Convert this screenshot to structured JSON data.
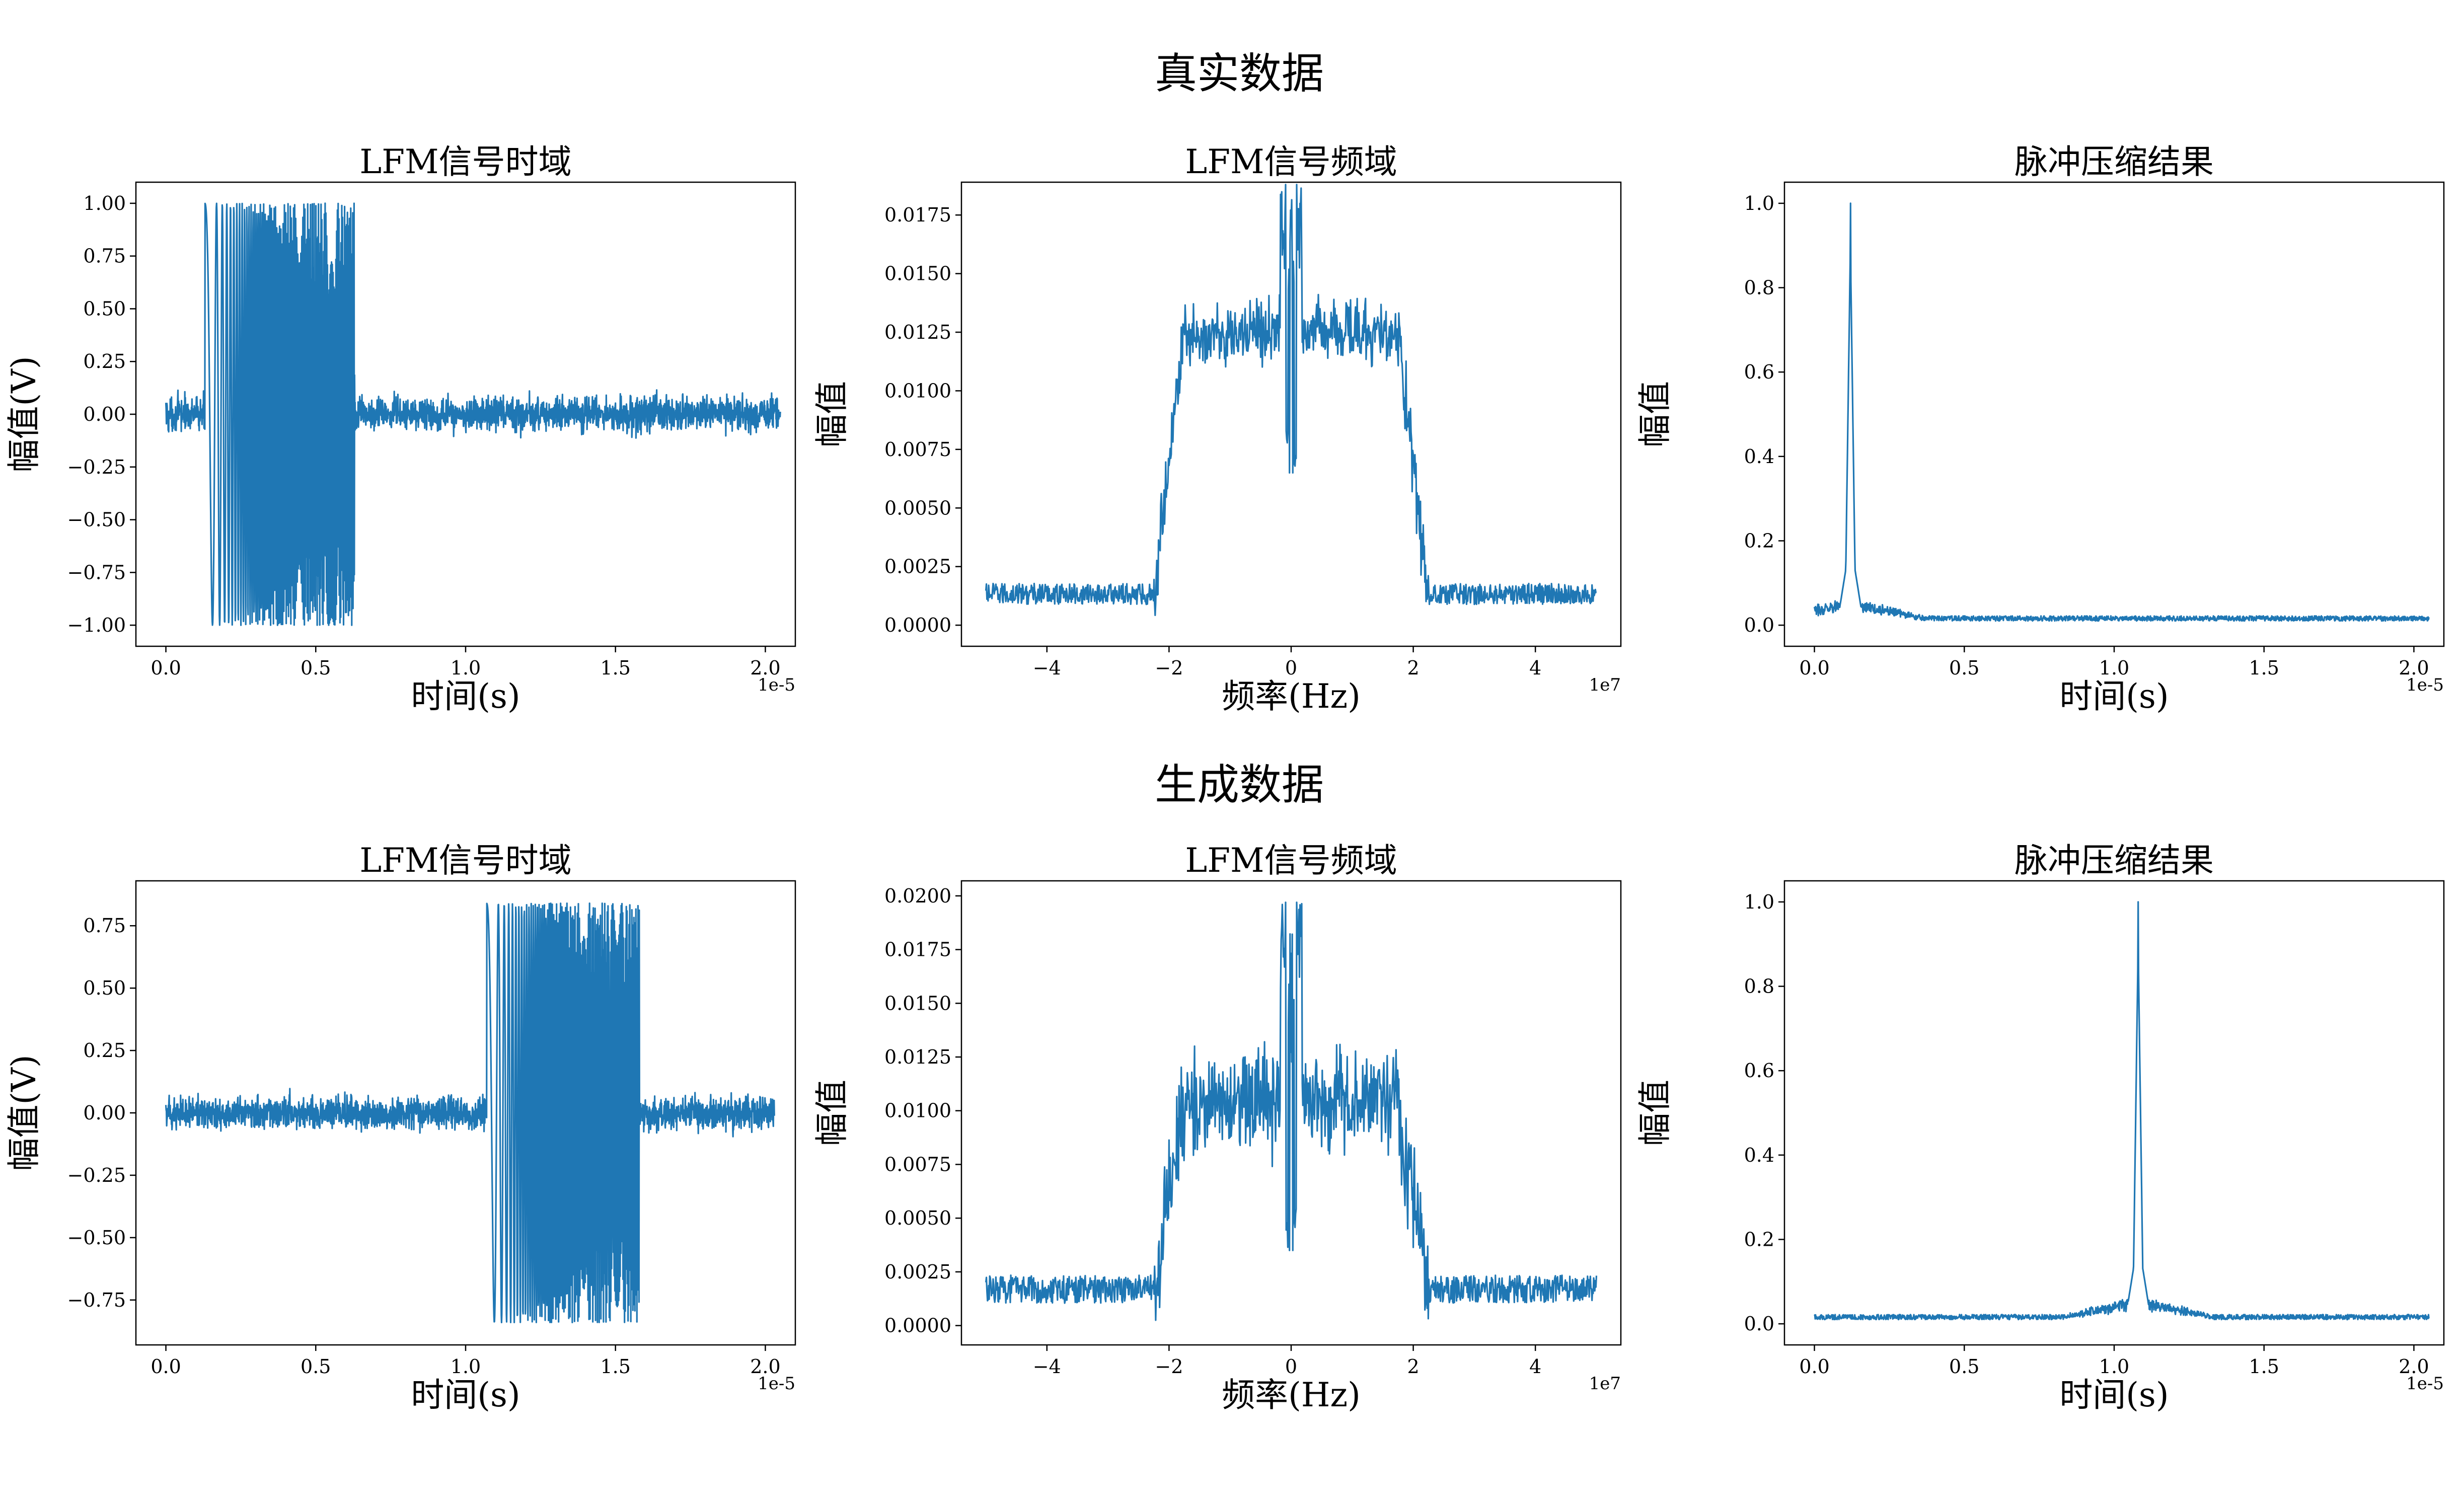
{
  "figure": {
    "rows": [
      {
        "title": "真实数据"
      },
      {
        "title": "生成数据"
      }
    ]
  },
  "colors": {
    "line": "#1f77b4",
    "axes": "#000000",
    "background": "#ffffff"
  },
  "chart_data": [
    {
      "type": "line",
      "row": 0,
      "col": 0,
      "title": "LFM信号时域",
      "xlabel": "时间(s)",
      "ylabel": "幅值(V)",
      "x_offset_text": "1e-5",
      "xlim": [
        -0.1,
        2.1
      ],
      "ylim": [
        -1.1,
        1.1
      ],
      "xticks": [
        0.0,
        0.5,
        1.0,
        1.5,
        2.0
      ],
      "xticklabels": [
        "0.0",
        "0.5",
        "1.0",
        "1.5",
        "2.0"
      ],
      "yticks": [
        -1.0,
        -0.75,
        -0.5,
        -0.25,
        0.0,
        0.25,
        0.5,
        0.75,
        1.0
      ],
      "yticklabels": [
        "−1.00",
        "−0.75",
        "−0.50",
        "−0.25",
        "0.00",
        "0.25",
        "0.50",
        "0.75",
        "1.00"
      ],
      "grid": false,
      "signal": {
        "kind": "time",
        "x_start": 0.0,
        "x_end": 2.05,
        "chirp_start": 0.13,
        "chirp_end": 0.63,
        "amplitude": 1.0,
        "noise_level": 0.17
      }
    },
    {
      "type": "line",
      "row": 0,
      "col": 1,
      "title": "LFM信号频域",
      "xlabel": "频率(Hz)",
      "ylabel": "幅值",
      "x_offset_text": "1e7",
      "xlim": [
        -5.4,
        5.4
      ],
      "ylim": [
        -0.0009,
        0.0189
      ],
      "xticks": [
        -4,
        -2,
        0,
        2,
        4
      ],
      "xticklabels": [
        "−4",
        "−2",
        "0",
        "2",
        "4"
      ],
      "yticks": [
        0.0,
        0.0025,
        0.005,
        0.0075,
        0.01,
        0.0125,
        0.015,
        0.0175
      ],
      "yticklabels": [
        "0.0000",
        "0.0025",
        "0.0050",
        "0.0075",
        "0.0100",
        "0.0125",
        "0.0150",
        "0.0175"
      ],
      "grid": false,
      "signal": {
        "kind": "spectrum",
        "x_start": -5.0,
        "x_end": 5.0,
        "band_edge": 2.0,
        "floor": 0.0012,
        "floor_noise": 0.0009,
        "plateau": 0.0125,
        "plateau_noise": 0.0025,
        "center_peak": 0.0188,
        "center_dip": 0.0065
      }
    },
    {
      "type": "line",
      "row": 0,
      "col": 2,
      "title": "脉冲压缩结果",
      "xlabel": "时间(s)",
      "ylabel": "幅值",
      "x_offset_text": "1e-5",
      "xlim": [
        -0.1,
        2.1
      ],
      "ylim": [
        -0.05,
        1.05
      ],
      "xticks": [
        0.0,
        0.5,
        1.0,
        1.5,
        2.0
      ],
      "xticklabels": [
        "0.0",
        "0.5",
        "1.0",
        "1.5",
        "2.0"
      ],
      "yticks": [
        0.0,
        0.2,
        0.4,
        0.6,
        0.8,
        1.0
      ],
      "yticklabels": [
        "0.0",
        "0.2",
        "0.4",
        "0.6",
        "0.8",
        "1.0"
      ],
      "grid": false,
      "signal": {
        "kind": "pulse",
        "x_start": 0.0,
        "x_end": 2.05,
        "peak_x": 0.12,
        "peak_y": 1.0,
        "baseline": 0.01
      }
    },
    {
      "type": "line",
      "row": 1,
      "col": 0,
      "title": "LFM信号时域",
      "xlabel": "时间(s)",
      "ylabel": "幅值(V)",
      "x_offset_text": "1e-5",
      "xlim": [
        -0.1,
        2.1
      ],
      "ylim": [
        -0.93,
        0.93
      ],
      "xticks": [
        0.0,
        0.5,
        1.0,
        1.5,
        2.0
      ],
      "xticklabels": [
        "0.0",
        "0.5",
        "1.0",
        "1.5",
        "2.0"
      ],
      "yticks": [
        -0.75,
        -0.5,
        -0.25,
        0.0,
        0.25,
        0.5,
        0.75
      ],
      "yticklabels": [
        "−0.75",
        "−0.50",
        "−0.25",
        "0.00",
        "0.25",
        "0.50",
        "0.75"
      ],
      "grid": false,
      "signal": {
        "kind": "time",
        "x_start": 0.0,
        "x_end": 2.03,
        "chirp_start": 1.07,
        "chirp_end": 1.58,
        "amplitude": 0.84,
        "noise_level": 0.14
      }
    },
    {
      "type": "line",
      "row": 1,
      "col": 1,
      "title": "LFM信号频域",
      "xlabel": "频率(Hz)",
      "ylabel": "幅值",
      "x_offset_text": "1e7",
      "xlim": [
        -5.4,
        5.4
      ],
      "ylim": [
        -0.0009,
        0.0207
      ],
      "xticks": [
        -4,
        -2,
        0,
        2,
        4
      ],
      "xticklabels": [
        "−4",
        "−2",
        "0",
        "2",
        "4"
      ],
      "yticks": [
        0.0,
        0.0025,
        0.005,
        0.0075,
        0.01,
        0.0125,
        0.015,
        0.0175,
        0.02
      ],
      "yticklabels": [
        "0.0000",
        "0.0025",
        "0.0050",
        "0.0075",
        "0.0100",
        "0.0125",
        "0.0150",
        "0.0175",
        "0.0200"
      ],
      "grid": false,
      "signal": {
        "kind": "spectrum",
        "x_start": -5.0,
        "x_end": 5.0,
        "band_edge": 2.0,
        "floor": 0.0015,
        "floor_noise": 0.0013,
        "plateau": 0.0105,
        "plateau_noise": 0.0045,
        "center_peak": 0.0197,
        "center_dip": 0.0035
      }
    },
    {
      "type": "line",
      "row": 1,
      "col": 2,
      "title": "脉冲压缩结果",
      "xlabel": "时间(s)",
      "ylabel": "幅值",
      "x_offset_text": "1e-5",
      "xlim": [
        -0.1,
        2.1
      ],
      "ylim": [
        -0.05,
        1.05
      ],
      "xticks": [
        0.0,
        0.5,
        1.0,
        1.5,
        2.0
      ],
      "xticklabels": [
        "0.0",
        "0.5",
        "1.0",
        "1.5",
        "2.0"
      ],
      "yticks": [
        0.0,
        0.2,
        0.4,
        0.6,
        0.8,
        1.0
      ],
      "yticklabels": [
        "0.0",
        "0.2",
        "0.4",
        "0.6",
        "0.8",
        "1.0"
      ],
      "grid": false,
      "signal": {
        "kind": "pulse",
        "x_start": 0.0,
        "x_end": 2.05,
        "peak_x": 1.08,
        "peak_y": 1.0,
        "baseline": 0.01
      }
    }
  ]
}
